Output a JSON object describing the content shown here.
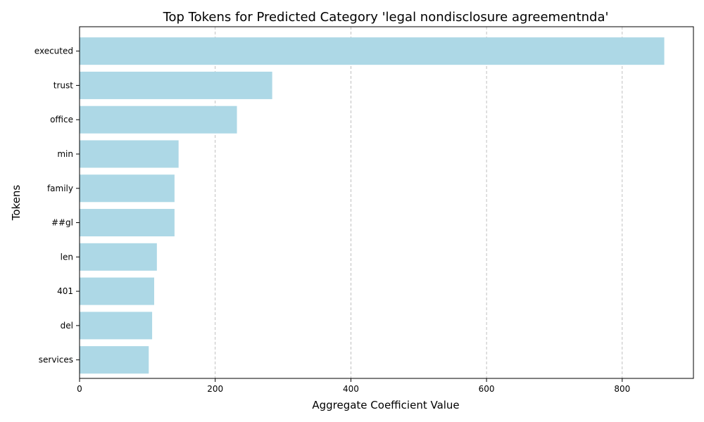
{
  "chart_data": {
    "type": "bar",
    "orientation": "horizontal",
    "title": "Top Tokens for Predicted Category 'legal nondisclosure agreementnda'",
    "xlabel": "Aggregate Coefficient Value",
    "ylabel": "Tokens",
    "categories": [
      "executed",
      "trust",
      "office",
      "min",
      "family",
      "##gl",
      "len",
      "401",
      "del",
      "services"
    ],
    "values": [
      862,
      284,
      232,
      146,
      140,
      140,
      114,
      110,
      107,
      102
    ],
    "xlim": [
      0,
      905
    ],
    "xticks": [
      0,
      200,
      400,
      600,
      800
    ],
    "grid": "x-dashed",
    "bar_color": "#add8e6",
    "legend": "none"
  }
}
